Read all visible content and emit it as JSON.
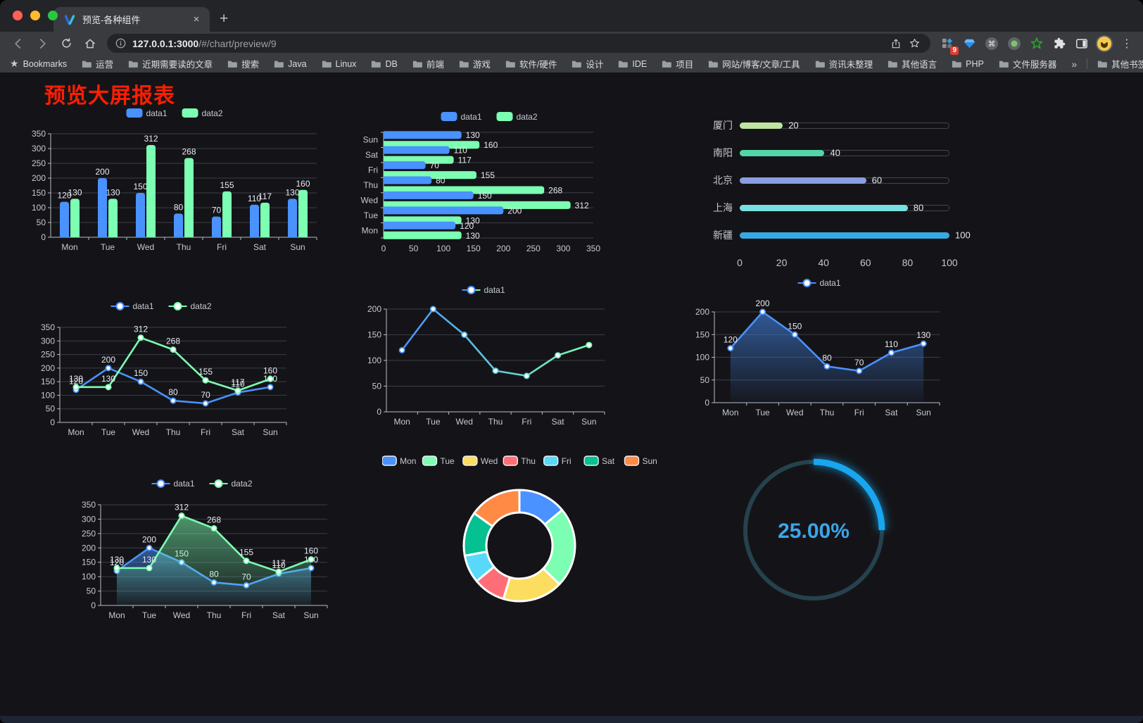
{
  "browser": {
    "traffic_lights": [
      "#ff5f57",
      "#febc2e",
      "#28c840"
    ],
    "tab_title": "预览-各种组件",
    "close_glyph": "×",
    "new_tab_glyph": "+",
    "url": {
      "host": "127.0.0.1:3000",
      "path": "/#/chart/preview/9"
    },
    "extension_badge": "9",
    "menu_glyph": "⋮",
    "bookmarks_label": "Bookmarks",
    "bookmark_folders": [
      "运营",
      "近期需要读的文章",
      "搜索",
      "Java",
      "Linux",
      "DB",
      "前端",
      "游戏",
      "软件/硬件",
      "设计",
      "IDE",
      "项目",
      "网站/博客/文章/工具",
      "资讯未整理",
      "其他语言",
      "PHP",
      "文件服务器"
    ],
    "bookmarks_overflow_glyph": "»",
    "other_bookmarks_label": "其他书签"
  },
  "page": {
    "title": "预览大屏报表",
    "title_color": "#ff1e00",
    "background": "#141418"
  },
  "chart_data": [
    {
      "id": "grouped-bar",
      "type": "bar",
      "orientation": "vertical",
      "categories": [
        "Mon",
        "Tue",
        "Wed",
        "Thu",
        "Fri",
        "Sat",
        "Sun"
      ],
      "series": [
        {
          "name": "data1",
          "color": "#4992ff",
          "values": [
            120,
            200,
            150,
            80,
            70,
            110,
            130
          ]
        },
        {
          "name": "data2",
          "color": "#7cffb2",
          "values": [
            130,
            130,
            312,
            268,
            155,
            117,
            160
          ]
        }
      ],
      "ylim": [
        0,
        350
      ],
      "ytick_step": 50,
      "show_labels": true,
      "legend_position": "top",
      "grid": true
    },
    {
      "id": "grouped-bar-horizontal",
      "type": "bar",
      "orientation": "horizontal",
      "categories_bottom_to_top": [
        "Mon",
        "Tue",
        "Wed",
        "Thu",
        "Fri",
        "Sat",
        "Sun"
      ],
      "series": [
        {
          "name": "data1",
          "color": "#4992ff",
          "values": [
            120,
            200,
            150,
            80,
            70,
            110,
            130
          ]
        },
        {
          "name": "data2",
          "color": "#7cffb2",
          "values": [
            130,
            130,
            312,
            268,
            155,
            117,
            160
          ]
        }
      ],
      "xlim": [
        0,
        350
      ],
      "xtick_step": 50,
      "show_labels": true,
      "legend_position": "top",
      "grid": true
    },
    {
      "id": "city-progress",
      "type": "bar",
      "orientation": "progress",
      "categories": [
        "厦门",
        "南阳",
        "北京",
        "上海",
        "新疆"
      ],
      "values": [
        20,
        40,
        60,
        80,
        100
      ],
      "colors": [
        "#bfe3a0",
        "#52d6a7",
        "#8c9de0",
        "#7adfe0",
        "#38a9e2"
      ],
      "xlim": [
        0,
        100
      ],
      "xticks": [
        0,
        20,
        40,
        60,
        80,
        100
      ]
    },
    {
      "id": "two-line",
      "type": "line",
      "categories": [
        "Mon",
        "Tue",
        "Wed",
        "Thu",
        "Fri",
        "Sat",
        "Sun"
      ],
      "series": [
        {
          "name": "data1",
          "color": "#4992ff",
          "values": [
            120,
            200,
            150,
            80,
            70,
            110,
            130
          ]
        },
        {
          "name": "data2",
          "color": "#7cffb2",
          "values": [
            130,
            130,
            312,
            268,
            155,
            117,
            160
          ]
        }
      ],
      "ylim": [
        0,
        350
      ],
      "ytick_step": 50,
      "show_labels": true,
      "legend_position": "top",
      "grid": true
    },
    {
      "id": "gradient-line",
      "type": "line",
      "categories": [
        "Mon",
        "Tue",
        "Wed",
        "Thu",
        "Fri",
        "Sat",
        "Sun"
      ],
      "series": [
        {
          "name": "data1",
          "color": "#4992ff",
          "gradient": [
            "#4992ff",
            "#7cffb2"
          ],
          "values": [
            120,
            200,
            150,
            80,
            70,
            110,
            130
          ]
        }
      ],
      "ylim": [
        0,
        200
      ],
      "ytick_step": 50,
      "show_labels": false,
      "legend_position": "top",
      "grid": true
    },
    {
      "id": "area-line",
      "type": "area",
      "categories": [
        "Mon",
        "Tue",
        "Wed",
        "Thu",
        "Fri",
        "Sat",
        "Sun"
      ],
      "series": [
        {
          "name": "data1",
          "color": "#4992ff",
          "area": true,
          "values": [
            120,
            200,
            150,
            80,
            70,
            110,
            130
          ]
        }
      ],
      "ylim": [
        0,
        200
      ],
      "ytick_step": 50,
      "show_labels": true,
      "legend_position": "top",
      "grid": true
    },
    {
      "id": "two-area-line",
      "type": "area",
      "categories": [
        "Mon",
        "Tue",
        "Wed",
        "Thu",
        "Fri",
        "Sat",
        "Sun"
      ],
      "series": [
        {
          "name": "data1",
          "color": "#4992ff",
          "area": true,
          "values": [
            120,
            200,
            150,
            80,
            70,
            110,
            130
          ]
        },
        {
          "name": "data2",
          "color": "#7cffb2",
          "area": true,
          "values": [
            130,
            130,
            312,
            268,
            155,
            117,
            160
          ]
        }
      ],
      "ylim": [
        0,
        350
      ],
      "ytick_step": 50,
      "show_labels": true,
      "legend_position": "top",
      "grid": true
    },
    {
      "id": "weekday-donut",
      "type": "pie",
      "donut": true,
      "legend_position": "top",
      "categories": [
        "Mon",
        "Tue",
        "Wed",
        "Thu",
        "Fri",
        "Sat",
        "Sun"
      ],
      "values": [
        120,
        200,
        150,
        80,
        70,
        110,
        130
      ],
      "colors": [
        "#4992ff",
        "#7cffb2",
        "#fddd60",
        "#ff6e76",
        "#58d9f9",
        "#05c091",
        "#ff8a45"
      ]
    },
    {
      "id": "percent-gauge",
      "type": "gauge",
      "value_percent": 25,
      "label": "25.00%",
      "arc_color": "#18a6ee",
      "track_color": "#25424d",
      "text_color": "#3ba6ea"
    }
  ]
}
